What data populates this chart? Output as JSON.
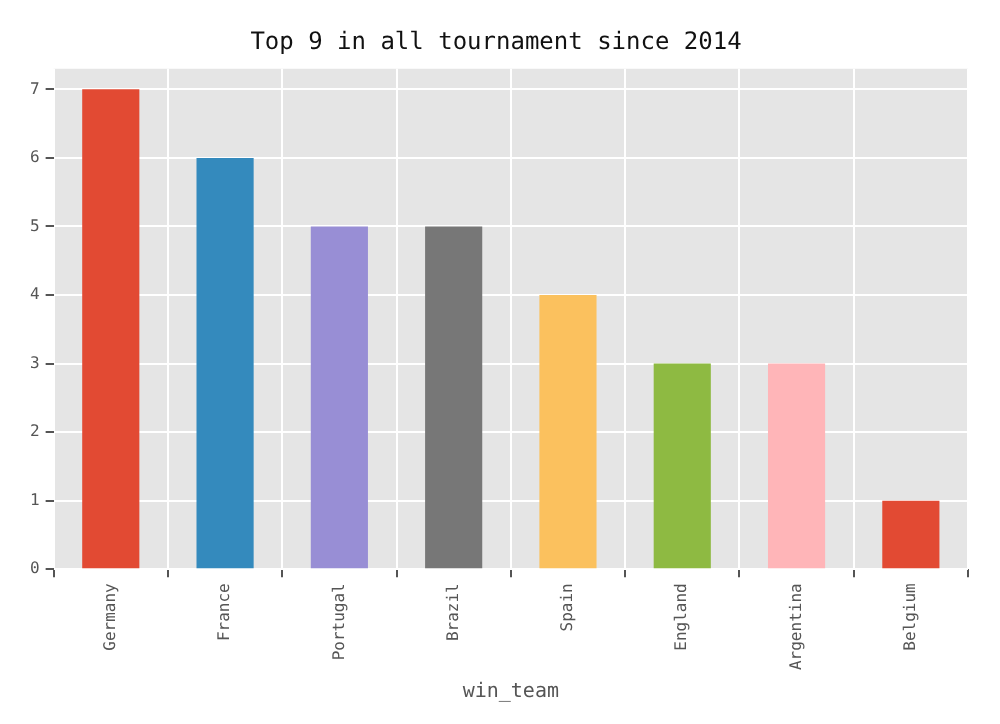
{
  "chart_data": {
    "type": "bar",
    "title": "Top 9 in all tournament since 2014",
    "xlabel": "win_team",
    "categories": [
      "Germany",
      "France",
      "Portugal",
      "Brazil",
      "Spain",
      "England",
      "Argentina",
      "Belgium"
    ],
    "values": [
      7,
      6,
      5,
      5,
      4,
      3,
      3,
      1
    ],
    "colors": [
      "#e24a33",
      "#348abd",
      "#988ed5",
      "#777777",
      "#fbc15e",
      "#8eba42",
      "#ffb5b8",
      "#e24a33"
    ],
    "ylim": [
      0,
      7.3
    ],
    "yticks": [
      0,
      1,
      2,
      3,
      4,
      5,
      6,
      7
    ],
    "grid": true
  }
}
